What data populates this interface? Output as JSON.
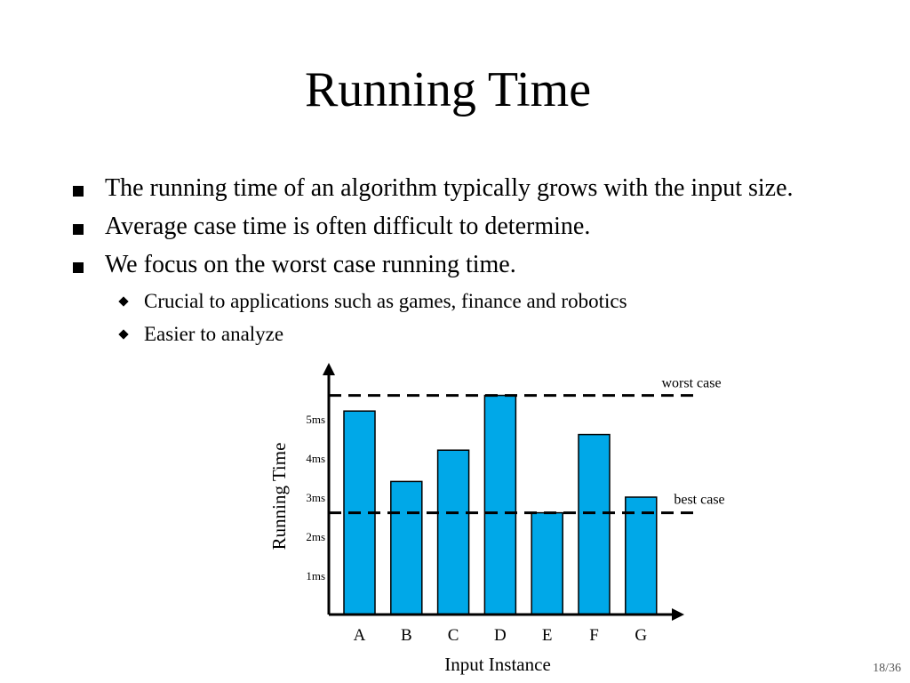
{
  "slide": {
    "title": "Running Time",
    "bullets": [
      "The running time of an algorithm typically grows with the input size.",
      "Average case time is often difficult to determine.",
      "We focus on the worst case running time."
    ],
    "sub_bullets": [
      "Crucial to applications such as games, finance and robotics",
      "Easier to analyze"
    ],
    "page_number": "18/36"
  },
  "chart_data": {
    "type": "bar",
    "categories": [
      "A",
      "B",
      "C",
      "D",
      "E",
      "F",
      "G"
    ],
    "values": [
      5.2,
      3.4,
      4.2,
      5.6,
      2.6,
      4.6,
      3.0
    ],
    "xlabel": "Input Instance",
    "ylabel": "Running Time",
    "yticks": [
      "1ms",
      "2ms",
      "3ms",
      "4ms",
      "5ms"
    ],
    "ylim": [
      0,
      6
    ],
    "grid": false,
    "bar_color": "#00a8e8",
    "reference_lines": [
      {
        "label": "worst case",
        "value": 5.6
      },
      {
        "label": "best case",
        "value": 2.6
      }
    ]
  }
}
